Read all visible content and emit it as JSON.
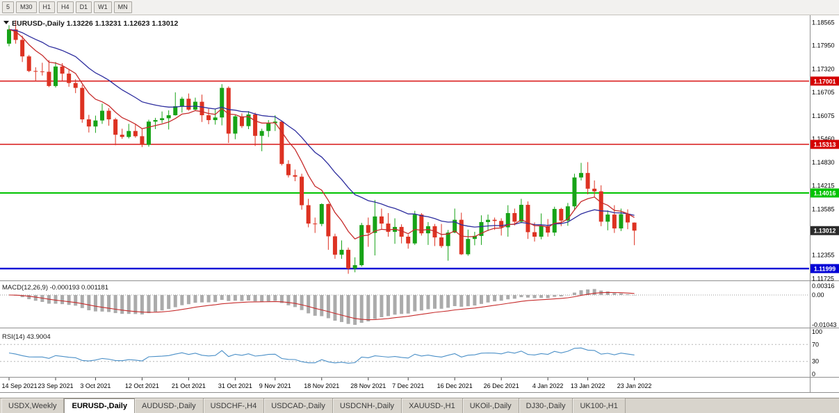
{
  "toolbar": {
    "timeframes": [
      "5",
      "M30",
      "H1",
      "H4",
      "D1",
      "W1",
      "MN"
    ]
  },
  "chart": {
    "title": "EURUSD-,Daily 1.13226 1.13231 1.12623 1.13012"
  },
  "macd": {
    "label": "MACD(12,26,9) -0.000193 0.001181",
    "axis_labels": [
      "0.00316",
      "0.00",
      "-0.01043"
    ]
  },
  "rsi": {
    "label": "RSI(14) 43.9004",
    "axis_labels": [
      "100",
      "70",
      "30",
      "0"
    ],
    "levels": [
      70,
      30
    ]
  },
  "chart_data": {
    "type": "candlestick",
    "title": "EURUSD-,Daily",
    "current_bar_ohlc": [
      1.13226,
      1.13231,
      1.12623,
      1.13012
    ],
    "price_axis_labels": [
      "1.18565",
      "1.17950",
      "1.17320",
      "1.16705",
      "1.16075",
      "1.15460",
      "1.14830",
      "1.14215",
      "1.13585",
      "1.12355",
      "1.11725"
    ],
    "price_range": [
      1.1172,
      1.1872
    ],
    "date_labels": [
      "14 Sep 2021",
      "23 Sep 2021",
      "3 Oct 2021",
      "12 Oct 2021",
      "21 Oct 2021",
      "31 Oct 2021",
      "9 Nov 2021",
      "18 Nov 2021",
      "28 Nov 2021",
      "7 Dec 2021",
      "16 Dec 2021",
      "26 Dec 2021",
      "4 Jan 2022",
      "13 Jan 2022",
      "23 Jan 2022"
    ],
    "h_lines": [
      {
        "price": 1.17001,
        "label": "1.17001",
        "color": "#d40000",
        "width": 1.4
      },
      {
        "price": 1.15313,
        "label": "1.15313",
        "color": "#d40000",
        "width": 1.4
      },
      {
        "price": 1.14016,
        "label": "1.14016",
        "color": "#00c300",
        "width": 2
      },
      {
        "price": 1.11999,
        "label": "1.11999",
        "color": "#0000d6",
        "width": 2.4
      }
    ],
    "current_price": {
      "value": 1.13012,
      "label": "1.13012",
      "badge_color": "#2b2b2b"
    },
    "indicators": {
      "macd": {
        "fast": 12,
        "slow": 26,
        "signal": 9,
        "value": -0.000193,
        "signal_value": 0.001181,
        "range": [
          -0.01043,
          0.00316
        ]
      },
      "rsi": {
        "period": 14,
        "value": 43.9004
      }
    },
    "colors": {
      "bull": "#17a317",
      "bear": "#dd3222",
      "ma_fast": "#c62b2b",
      "ma_slow": "#2d2d9e",
      "macd_hist": "#ababab",
      "macd_signal": "#c62b2b",
      "rsi": "#4a8fc7"
    },
    "candles": [
      [
        1.18,
        1.1849,
        1.1793,
        1.1838
      ],
      [
        1.1838,
        1.1862,
        1.18,
        1.181
      ],
      [
        1.181,
        1.1821,
        1.1751,
        1.1766
      ],
      [
        1.1766,
        1.177,
        1.1724,
        1.1727
      ],
      [
        1.1727,
        1.1737,
        1.17,
        1.1726
      ],
      [
        1.1726,
        1.1749,
        1.1715,
        1.1725
      ],
      [
        1.1725,
        1.1756,
        1.1684,
        1.1687
      ],
      [
        1.1687,
        1.1751,
        1.1683,
        1.1739
      ],
      [
        1.1739,
        1.1748,
        1.1701,
        1.172
      ],
      [
        1.172,
        1.173,
        1.1685,
        1.1695
      ],
      [
        1.1695,
        1.1705,
        1.1668,
        1.1682
      ],
      [
        1.1682,
        1.169,
        1.1589,
        1.1598
      ],
      [
        1.1598,
        1.161,
        1.1563,
        1.1579
      ],
      [
        1.1579,
        1.1608,
        1.1562,
        1.1595
      ],
      [
        1.1595,
        1.164,
        1.1586,
        1.1621
      ],
      [
        1.1621,
        1.1628,
        1.1581,
        1.1598
      ],
      [
        1.1598,
        1.1602,
        1.1529,
        1.1557
      ],
      [
        1.1557,
        1.1573,
        1.1546,
        1.1551
      ],
      [
        1.1551,
        1.1586,
        1.1547,
        1.1567
      ],
      [
        1.1567,
        1.1586,
        1.1549,
        1.1553
      ],
      [
        1.1553,
        1.1572,
        1.1524,
        1.153
      ],
      [
        1.153,
        1.1597,
        1.1525,
        1.1592
      ],
      [
        1.1592,
        1.1602,
        1.1572,
        1.1596
      ],
      [
        1.1596,
        1.1619,
        1.1588,
        1.1601
      ],
      [
        1.1601,
        1.1622,
        1.1571,
        1.1609
      ],
      [
        1.1609,
        1.167,
        1.1608,
        1.1633
      ],
      [
        1.1633,
        1.1658,
        1.1616,
        1.1653
      ],
      [
        1.1653,
        1.1667,
        1.1621,
        1.1624
      ],
      [
        1.1624,
        1.1656,
        1.162,
        1.1645
      ],
      [
        1.1645,
        1.1664,
        1.1591,
        1.1609
      ],
      [
        1.1609,
        1.1626,
        1.1585,
        1.1596
      ],
      [
        1.1596,
        1.1626,
        1.1584,
        1.1603
      ],
      [
        1.1603,
        1.1692,
        1.1582,
        1.1682
      ],
      [
        1.1682,
        1.1686,
        1.1535,
        1.156
      ],
      [
        1.156,
        1.1609,
        1.1545,
        1.1606
      ],
      [
        1.1606,
        1.1614,
        1.1575,
        1.158
      ],
      [
        1.158,
        1.162,
        1.1572,
        1.1611
      ],
      [
        1.1611,
        1.1616,
        1.1527,
        1.1554
      ],
      [
        1.1554,
        1.1573,
        1.1513,
        1.1567
      ],
      [
        1.1567,
        1.1596,
        1.1551,
        1.1588
      ],
      [
        1.1588,
        1.1609,
        1.1567,
        1.1592
      ],
      [
        1.1592,
        1.1595,
        1.1475,
        1.1479
      ],
      [
        1.1479,
        1.1489,
        1.1443,
        1.1449
      ],
      [
        1.1449,
        1.1464,
        1.1433,
        1.1445
      ],
      [
        1.1445,
        1.1453,
        1.1357,
        1.1369
      ],
      [
        1.1369,
        1.1386,
        1.131,
        1.132
      ],
      [
        1.132,
        1.1336,
        1.1295,
        1.1319
      ],
      [
        1.1319,
        1.1374,
        1.1313,
        1.1372
      ],
      [
        1.1372,
        1.1374,
        1.125,
        1.1286
      ],
      [
        1.1286,
        1.1293,
        1.1226,
        1.1237
      ],
      [
        1.1237,
        1.1275,
        1.1226,
        1.125
      ],
      [
        1.125,
        1.1256,
        1.1186,
        1.12
      ],
      [
        1.12,
        1.123,
        1.119,
        1.1209
      ],
      [
        1.1209,
        1.1322,
        1.1205,
        1.1316
      ],
      [
        1.1316,
        1.1336,
        1.1258,
        1.1295
      ],
      [
        1.1295,
        1.1383,
        1.1235,
        1.1339
      ],
      [
        1.1339,
        1.136,
        1.1305,
        1.132
      ],
      [
        1.132,
        1.1348,
        1.1285,
        1.1298
      ],
      [
        1.1298,
        1.1334,
        1.1266,
        1.1311
      ],
      [
        1.1311,
        1.1318,
        1.1267,
        1.1285
      ],
      [
        1.1285,
        1.1291,
        1.1253,
        1.1267
      ],
      [
        1.1267,
        1.1354,
        1.1263,
        1.1344
      ],
      [
        1.1344,
        1.1348,
        1.1288,
        1.1294
      ],
      [
        1.1294,
        1.1324,
        1.1263,
        1.1313
      ],
      [
        1.1313,
        1.1319,
        1.126,
        1.1283
      ],
      [
        1.1283,
        1.1319,
        1.1255,
        1.126
      ],
      [
        1.126,
        1.1303,
        1.1221,
        1.1296
      ],
      [
        1.1296,
        1.136,
        1.1294,
        1.133
      ],
      [
        1.133,
        1.1349,
        1.1236,
        1.1238
      ],
      [
        1.1238,
        1.1304,
        1.1234,
        1.1279
      ],
      [
        1.1279,
        1.1298,
        1.1262,
        1.1287
      ],
      [
        1.1287,
        1.1342,
        1.1263,
        1.1324
      ],
      [
        1.1324,
        1.1344,
        1.13,
        1.133
      ],
      [
        1.133,
        1.1336,
        1.1303,
        1.1327
      ],
      [
        1.1327,
        1.1334,
        1.1288,
        1.131
      ],
      [
        1.131,
        1.1369,
        1.1285,
        1.1348
      ],
      [
        1.1348,
        1.136,
        1.1315,
        1.1325
      ],
      [
        1.1325,
        1.1386,
        1.1321,
        1.137
      ],
      [
        1.137,
        1.1379,
        1.1279,
        1.1297
      ],
      [
        1.1297,
        1.1323,
        1.1272,
        1.1285
      ],
      [
        1.1285,
        1.1347,
        1.1278,
        1.1313
      ],
      [
        1.1313,
        1.1332,
        1.1285,
        1.1296
      ],
      [
        1.1296,
        1.1365,
        1.1287,
        1.1359
      ],
      [
        1.1359,
        1.1362,
        1.1313,
        1.1328
      ],
      [
        1.1328,
        1.1375,
        1.1314,
        1.1366
      ],
      [
        1.1366,
        1.1453,
        1.1355,
        1.1443
      ],
      [
        1.1443,
        1.1482,
        1.1435,
        1.1455
      ],
      [
        1.1455,
        1.1484,
        1.1398,
        1.1413
      ],
      [
        1.1413,
        1.1435,
        1.1391,
        1.1406
      ],
      [
        1.1406,
        1.1422,
        1.1313,
        1.1325
      ],
      [
        1.1325,
        1.1355,
        1.1302,
        1.1344
      ],
      [
        1.1344,
        1.1369,
        1.1295,
        1.1307
      ],
      [
        1.1307,
        1.136,
        1.13,
        1.1345
      ],
      [
        1.1345,
        1.1358,
        1.1305,
        1.1323
      ],
      [
        1.13226,
        1.13231,
        1.12623,
        1.13012
      ]
    ]
  },
  "tabs": [
    {
      "label": "USDX,Weekly",
      "active": false
    },
    {
      "label": "EURUSD-,Daily",
      "active": true
    },
    {
      "label": "AUDUSD-,Daily",
      "active": false
    },
    {
      "label": "USDCHF-,H4",
      "active": false
    },
    {
      "label": "USDCAD-,Daily",
      "active": false
    },
    {
      "label": "USDCNH-,Daily",
      "active": false
    },
    {
      "label": "XAUUSD-,H1",
      "active": false
    },
    {
      "label": "UKOil-,Daily",
      "active": false
    },
    {
      "label": "DJ30-,Daily",
      "active": false
    },
    {
      "label": "UK100-,H1",
      "active": false
    }
  ]
}
